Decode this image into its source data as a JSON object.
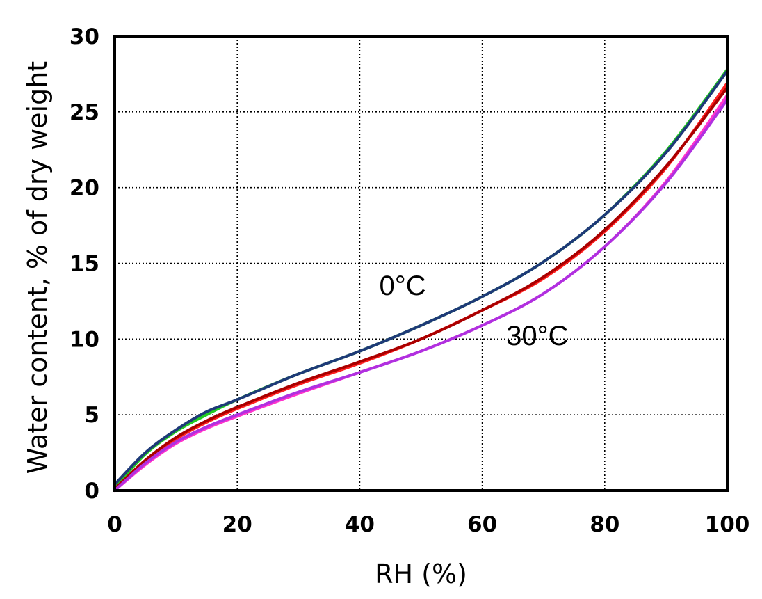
{
  "chart_data": {
    "type": "line",
    "title": "",
    "xlabel": "RH (%)",
    "ylabel": "Water content, % of dry weight",
    "xlim": [
      0,
      100
    ],
    "ylim": [
      0,
      30
    ],
    "x_ticks": [
      "0",
      "20",
      "40",
      "60",
      "80",
      "100"
    ],
    "y_ticks": [
      "0",
      "5",
      "10",
      "15",
      "20",
      "25",
      "30"
    ],
    "grid": true,
    "grid_style": "dotted",
    "legend": "none",
    "annotations": [
      {
        "text": "0°C",
        "x": 47,
        "y": 12.9
      },
      {
        "text": "30°C",
        "x": 69,
        "y": 9.6
      }
    ],
    "series": [
      {
        "color": "#22cc22",
        "x": [
          0,
          5,
          10,
          15,
          20,
          30,
          40,
          50,
          60,
          70,
          80,
          90,
          100
        ],
        "y": [
          0.2,
          2.4,
          3.9,
          5.0,
          6.0,
          7.7,
          9.2,
          10.9,
          12.8,
          15.1,
          18.2,
          22.4,
          27.8
        ]
      },
      {
        "color": "#1e3a78",
        "x": [
          0,
          5,
          10,
          15,
          20,
          30,
          40,
          50,
          60,
          70,
          80,
          90,
          100
        ],
        "y": [
          0.4,
          2.5,
          4.0,
          5.2,
          6.0,
          7.7,
          9.2,
          10.9,
          12.8,
          15.1,
          18.2,
          22.3,
          27.7
        ]
      },
      {
        "color": "#ff2020",
        "x": [
          0,
          5,
          10,
          15,
          20,
          30,
          40,
          50,
          60,
          70,
          80,
          90,
          100
        ],
        "y": [
          0.0,
          1.9,
          3.4,
          4.5,
          5.4,
          7.0,
          8.4,
          10.0,
          11.9,
          14.0,
          17.1,
          21.3,
          26.9
        ]
      },
      {
        "color": "#aa0000",
        "x": [
          0,
          5,
          10,
          15,
          20,
          30,
          40,
          50,
          60,
          70,
          80,
          90,
          100
        ],
        "y": [
          0.1,
          2.0,
          3.5,
          4.6,
          5.5,
          7.1,
          8.5,
          10.0,
          11.9,
          14.1,
          17.2,
          21.4,
          26.6
        ]
      },
      {
        "color": "#ff33cc",
        "x": [
          0,
          5,
          10,
          15,
          20,
          30,
          40,
          50,
          60,
          70,
          80,
          90,
          100
        ],
        "y": [
          0.0,
          1.7,
          3.1,
          4.1,
          4.9,
          6.4,
          7.8,
          9.2,
          10.9,
          13.0,
          16.1,
          20.4,
          26.1
        ]
      },
      {
        "color": "#b030e0",
        "x": [
          0,
          5,
          10,
          15,
          20,
          30,
          40,
          50,
          60,
          70,
          80,
          90,
          100
        ],
        "y": [
          0.0,
          1.8,
          3.2,
          4.2,
          5.0,
          6.5,
          7.8,
          9.2,
          10.9,
          13.0,
          16.1,
          20.3,
          25.8
        ]
      }
    ]
  }
}
